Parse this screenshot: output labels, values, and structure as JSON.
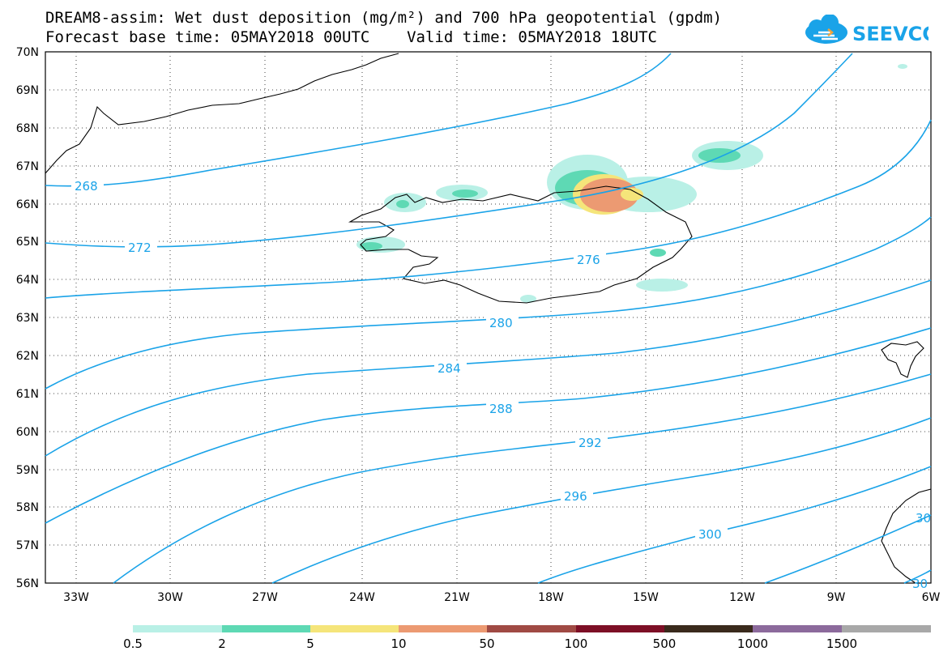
{
  "title": {
    "line1": "DREAM8-assim: Wet dust deposition (mg/m²) and 700 hPa geopotential (gpdm)",
    "line2": "Forecast base time: 05MAY2018 00UTC    Valid time: 05MAY2018 18UTC"
  },
  "logo": {
    "text": "SEEVCCC",
    "icon": "cloud-icon",
    "color": "#1aa3e8"
  },
  "map": {
    "lat_labels": [
      "70N",
      "69N",
      "68N",
      "67N",
      "66N",
      "65N",
      "64N",
      "63N",
      "62N",
      "61N",
      "60N",
      "59N",
      "58N",
      "57N",
      "56N"
    ],
    "lon_labels": [
      "33W",
      "30W",
      "27W",
      "24W",
      "21W",
      "18W",
      "15W",
      "12W",
      "9W",
      "6W"
    ],
    "contour_color": "#1aa3e8",
    "contour_labels": [
      "268",
      "272",
      "276",
      "280",
      "284",
      "288",
      "292",
      "296",
      "300",
      "30",
      "30"
    ]
  },
  "legend": {
    "labels": [
      "0.5",
      "2",
      "5",
      "10",
      "50",
      "100",
      "500",
      "1000",
      "1500"
    ],
    "colors": [
      "#b9f0e6",
      "#5ed9b4",
      "#f5e57a",
      "#ec9a72",
      "#a04a44",
      "#7d0f26",
      "#3a2a1c",
      "#8c6a9c",
      "#a8a8a8"
    ]
  }
}
